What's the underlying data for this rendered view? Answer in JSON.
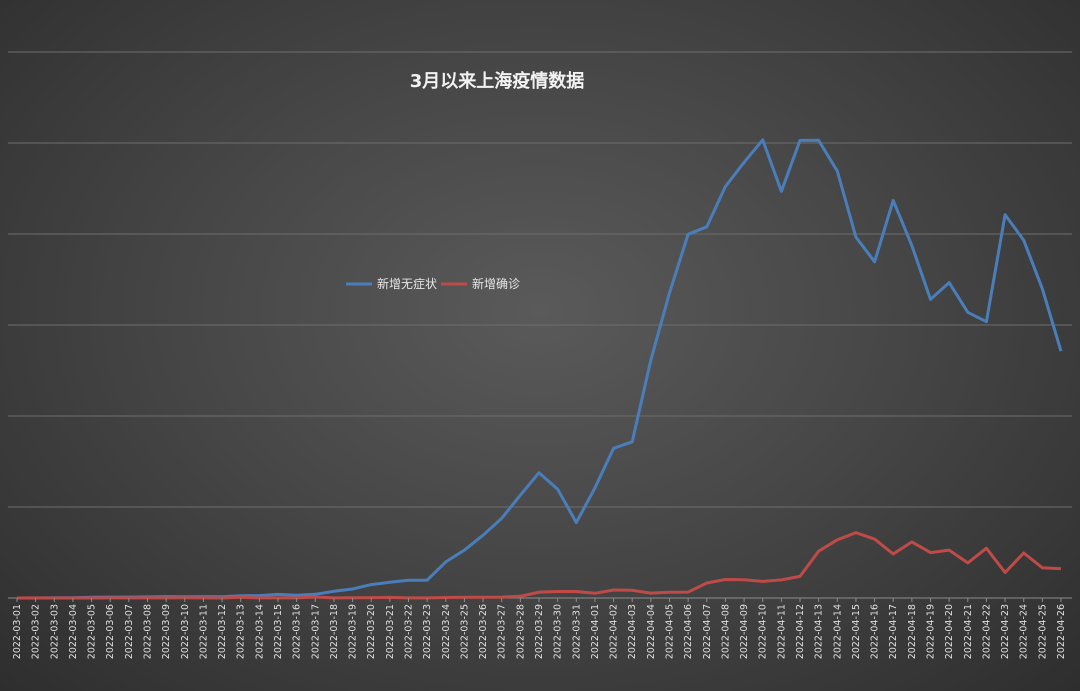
{
  "chart_data": {
    "type": "line",
    "title": "3月以来上海疫情数据",
    "xlabel": "",
    "ylabel": "",
    "ylim": [
      0,
      30000
    ],
    "grid": true,
    "legend_position": "center",
    "x": [
      "2022-03-01",
      "2022-03-02",
      "2022-03-03",
      "2022-03-04",
      "2022-03-05",
      "2022-03-06",
      "2022-03-07",
      "2022-03-08",
      "2022-03-09",
      "2022-03-10",
      "2022-03-11",
      "2022-03-12",
      "2022-03-13",
      "2022-03-14",
      "2022-03-15",
      "2022-03-16",
      "2022-03-17",
      "2022-03-18",
      "2022-03-19",
      "2022-03-20",
      "2022-03-21",
      "2022-03-22",
      "2022-03-23",
      "2022-03-24",
      "2022-03-25",
      "2022-03-26",
      "2022-03-27",
      "2022-03-28",
      "2022-03-29",
      "2022-03-30",
      "2022-03-31",
      "2022-04-01",
      "2022-04-02",
      "2022-04-03",
      "2022-04-04",
      "2022-04-05",
      "2022-04-06",
      "2022-04-07",
      "2022-04-08",
      "2022-04-09",
      "2022-04-10",
      "2022-04-11",
      "2022-04-12",
      "2022-04-13",
      "2022-04-14",
      "2022-04-15",
      "2022-04-16",
      "2022-04-17",
      "2022-04-18",
      "2022-04-19",
      "2022-04-20",
      "2022-04-21",
      "2022-04-22",
      "2022-04-23",
      "2022-04-24",
      "2022-04-25",
      "2022-04-26"
    ],
    "series": [
      {
        "name": "新增无症状",
        "color": "#4a7ebb",
        "values": [
          1,
          0,
          14,
          16,
          45,
          50,
          51,
          62,
          76,
          64,
          78,
          64,
          128,
          130,
          197,
          150,
          203,
          366,
          492,
          734,
          865,
          977,
          979,
          1983,
          2631,
          3450,
          4381,
          5656,
          6886,
          5982,
          4144,
          6051,
          8226,
          8581,
          13086,
          16766,
          19982,
          20398,
          22609,
          23937,
          25173,
          22348,
          25141,
          25146,
          23460,
          19831,
          18475,
          21844,
          19355,
          16407,
          17332,
          15698,
          15181,
          21058,
          19657,
          16983,
          13562
        ]
      },
      {
        "name": "新增确诊",
        "color": "#be4b48",
        "values": [
          1,
          3,
          2,
          2,
          1,
          3,
          3,
          3,
          4,
          11,
          5,
          1,
          41,
          5,
          5,
          8,
          57,
          8,
          17,
          24,
          31,
          4,
          4,
          29,
          38,
          45,
          50,
          96,
          326,
          355,
          358,
          260,
          438,
          425,
          268,
          311,
          322,
          824,
          1015,
          1006,
          914,
          994,
          1189,
          2573,
          3200,
          3590,
          3238,
          2417,
          3084,
          2494,
          2634,
          1931,
          2736,
          1401,
          2472,
          1661,
          1606
        ]
      }
    ]
  }
}
